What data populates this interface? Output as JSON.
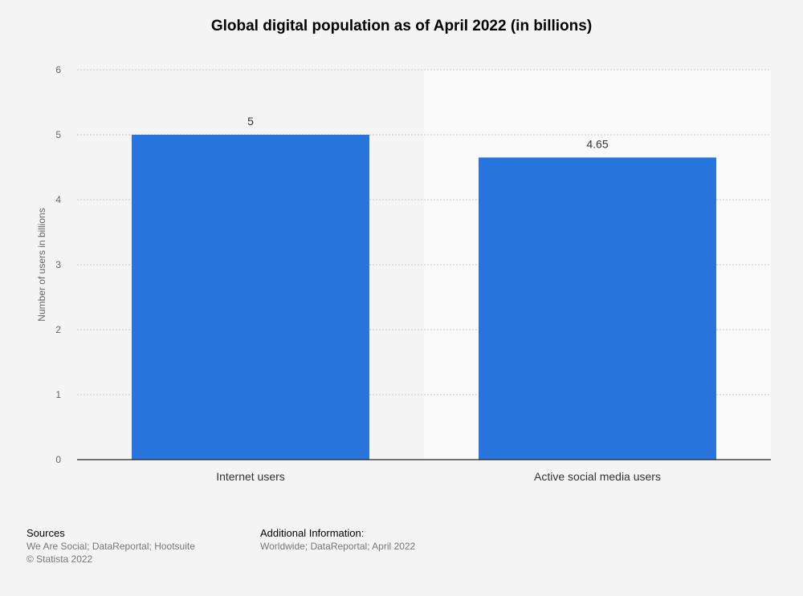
{
  "title": "Global digital population as of April 2022 (in billions)",
  "chart_data": {
    "type": "bar",
    "categories": [
      "Internet users",
      "Active social media users"
    ],
    "values": [
      5,
      4.65
    ],
    "value_labels": [
      "5",
      "4.65"
    ],
    "ylabel": "Number of users in billions",
    "xlabel": "",
    "ylim": [
      0,
      6
    ],
    "yticks": [
      0,
      1,
      2,
      3,
      4,
      5,
      6
    ],
    "grid": true,
    "bar_color": "#2876dd",
    "alt_band_color": "#fafafa"
  },
  "footer": {
    "sources_heading": "Sources",
    "sources_text": "We Are Social; DataReportal; Hootsuite",
    "copyright": "© Statista 2022",
    "additional_heading": "Additional Information:",
    "additional_text": "Worldwide; DataReportal; April 2022"
  }
}
